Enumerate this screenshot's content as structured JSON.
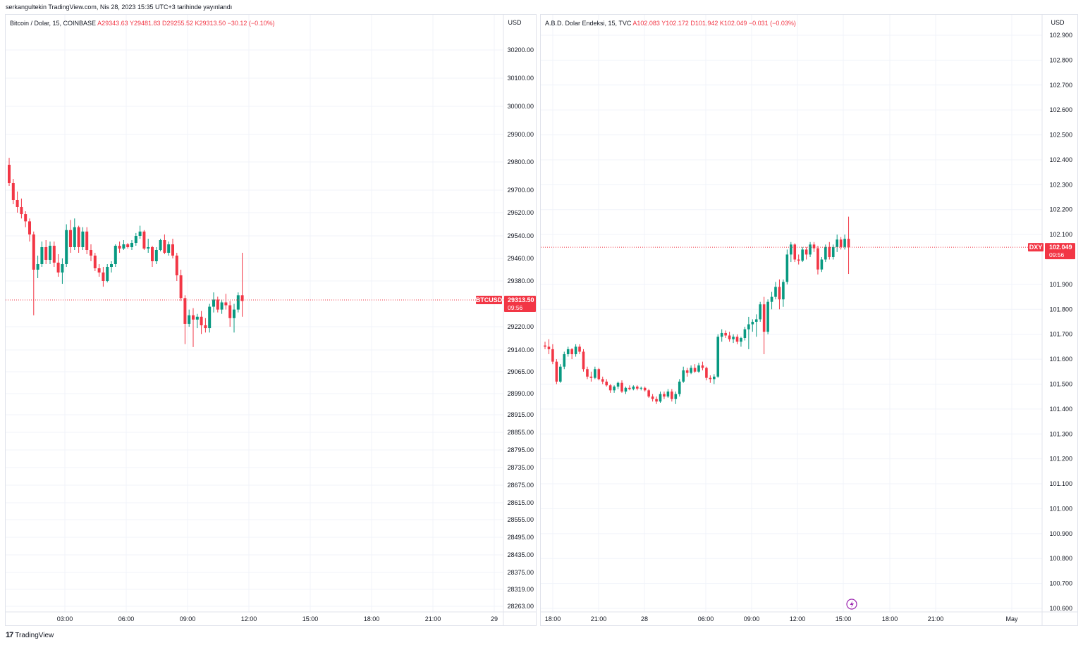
{
  "header": {
    "published": "serkangultekin TradingView.com, Nis 28, 2023 15:35 UTC+3 tarihinde yayınlandı"
  },
  "footer": {
    "brand": "TradingView",
    "logo_icon": "tradingview-logo-icon"
  },
  "colors": {
    "up": "#089981",
    "down": "#f23645",
    "grid": "#f0f3fa",
    "price_line": "#f23645"
  },
  "left": {
    "legend_symbol": "Bitcoin / Dolar, 15, COINBASE",
    "legend_ohlc": "A29343.63  Y29481.83  D29255.52  K29313.50  −30.12 (−0.10%)",
    "currency": "USD",
    "tag_symbol": "BTCUSD",
    "tag_price": "29313.50",
    "tag_time": "09:56",
    "y_labels": [
      "30200.00",
      "30100.00",
      "30000.00",
      "29900.00",
      "29800.00",
      "29700.00",
      "29620.00",
      "29540.00",
      "29460.00",
      "29380.00",
      "29220.00",
      "29140.00",
      "29065.00",
      "28990.00",
      "28915.00",
      "28855.00",
      "28795.00",
      "28735.00",
      "28675.00",
      "28615.00",
      "28555.00",
      "28495.00",
      "28435.00",
      "28375.00",
      "28319.00",
      "28263.00"
    ],
    "x_labels": [
      "03:00",
      "06:00",
      "09:00",
      "12:00",
      "15:00",
      "18:00",
      "21:00",
      "29"
    ]
  },
  "right": {
    "legend_symbol": "A.B.D. Dolar Endeksi, 15, TVC",
    "legend_ohlc": "A102.083  Y102.172  D101.942  K102.049  −0.031 (−0.03%)",
    "currency": "USD",
    "tag_symbol": "DXY",
    "tag_price": "102.049",
    "tag_time": "09:56",
    "event_icon": "lightning-icon",
    "y_labels": [
      "102.900",
      "102.800",
      "102.700",
      "102.600",
      "102.500",
      "102.400",
      "102.300",
      "102.200",
      "102.100",
      "101.900",
      "101.800",
      "101.700",
      "101.600",
      "101.500",
      "101.400",
      "101.300",
      "101.200",
      "101.100",
      "101.000",
      "100.900",
      "100.800",
      "100.700",
      "100.600"
    ],
    "x_labels": [
      "18:00",
      "21:00",
      "28",
      "06:00",
      "09:00",
      "12:00",
      "15:00",
      "18:00",
      "21:00",
      "May"
    ]
  },
  "chart_data": [
    {
      "type": "candlestick",
      "title": "Bitcoin / Dolar, 15, COINBASE",
      "currency": "USD",
      "last": 29313.5,
      "x_start": "00:45",
      "interval_minutes": 15,
      "series": [
        {
          "o": 29790,
          "h": 29815,
          "l": 29715,
          "c": 29725
        },
        {
          "o": 29725,
          "h": 29740,
          "l": 29650,
          "c": 29665
        },
        {
          "o": 29665,
          "h": 29695,
          "l": 29620,
          "c": 29640
        },
        {
          "o": 29640,
          "h": 29670,
          "l": 29600,
          "c": 29615
        },
        {
          "o": 29615,
          "h": 29625,
          "l": 29570,
          "c": 29590
        },
        {
          "o": 29590,
          "h": 29600,
          "l": 29520,
          "c": 29545
        },
        {
          "o": 29545,
          "h": 29555,
          "l": 29260,
          "c": 29420
        },
        {
          "o": 29420,
          "h": 29470,
          "l": 29390,
          "c": 29440
        },
        {
          "o": 29440,
          "h": 29520,
          "l": 29430,
          "c": 29500
        },
        {
          "o": 29500,
          "h": 29525,
          "l": 29440,
          "c": 29455
        },
        {
          "o": 29455,
          "h": 29520,
          "l": 29440,
          "c": 29505
        },
        {
          "o": 29505,
          "h": 29520,
          "l": 29430,
          "c": 29445
        },
        {
          "o": 29445,
          "h": 29475,
          "l": 29395,
          "c": 29410
        },
        {
          "o": 29410,
          "h": 29460,
          "l": 29370,
          "c": 29440
        },
        {
          "o": 29440,
          "h": 29580,
          "l": 29430,
          "c": 29560
        },
        {
          "o": 29560,
          "h": 29595,
          "l": 29480,
          "c": 29500
        },
        {
          "o": 29500,
          "h": 29600,
          "l": 29490,
          "c": 29570
        },
        {
          "o": 29570,
          "h": 29575,
          "l": 29480,
          "c": 29500
        },
        {
          "o": 29500,
          "h": 29570,
          "l": 29490,
          "c": 29555
        },
        {
          "o": 29555,
          "h": 29570,
          "l": 29475,
          "c": 29490
        },
        {
          "o": 29490,
          "h": 29510,
          "l": 29450,
          "c": 29470
        },
        {
          "o": 29470,
          "h": 29480,
          "l": 29415,
          "c": 29425
        },
        {
          "o": 29425,
          "h": 29440,
          "l": 29395,
          "c": 29410
        },
        {
          "o": 29410,
          "h": 29430,
          "l": 29360,
          "c": 29380
        },
        {
          "o": 29380,
          "h": 29440,
          "l": 29375,
          "c": 29430
        },
        {
          "o": 29430,
          "h": 29450,
          "l": 29410,
          "c": 29440
        },
        {
          "o": 29440,
          "h": 29510,
          "l": 29430,
          "c": 29505
        },
        {
          "o": 29505,
          "h": 29520,
          "l": 29480,
          "c": 29495
        },
        {
          "o": 29495,
          "h": 29525,
          "l": 29490,
          "c": 29510
        },
        {
          "o": 29510,
          "h": 29515,
          "l": 29495,
          "c": 29500
        },
        {
          "o": 29500,
          "h": 29525,
          "l": 29490,
          "c": 29515
        },
        {
          "o": 29515,
          "h": 29550,
          "l": 29505,
          "c": 29540
        },
        {
          "o": 29540,
          "h": 29575,
          "l": 29530,
          "c": 29555
        },
        {
          "o": 29555,
          "h": 29560,
          "l": 29490,
          "c": 29495
        },
        {
          "o": 29495,
          "h": 29530,
          "l": 29480,
          "c": 29500
        },
        {
          "o": 29500,
          "h": 29505,
          "l": 29430,
          "c": 29450
        },
        {
          "o": 29450,
          "h": 29500,
          "l": 29440,
          "c": 29490
        },
        {
          "o": 29490,
          "h": 29530,
          "l": 29485,
          "c": 29525
        },
        {
          "o": 29525,
          "h": 29545,
          "l": 29475,
          "c": 29480
        },
        {
          "o": 29480,
          "h": 29520,
          "l": 29470,
          "c": 29510
        },
        {
          "o": 29510,
          "h": 29530,
          "l": 29460,
          "c": 29470
        },
        {
          "o": 29470,
          "h": 29480,
          "l": 29380,
          "c": 29400
        },
        {
          "o": 29400,
          "h": 29420,
          "l": 29310,
          "c": 29320
        },
        {
          "o": 29320,
          "h": 29330,
          "l": 29160,
          "c": 29230
        },
        {
          "o": 29230,
          "h": 29280,
          "l": 29220,
          "c": 29260
        },
        {
          "o": 29260,
          "h": 29285,
          "l": 29150,
          "c": 29245
        },
        {
          "o": 29245,
          "h": 29265,
          "l": 29215,
          "c": 29255
        },
        {
          "o": 29255,
          "h": 29275,
          "l": 29195,
          "c": 29225
        },
        {
          "o": 29225,
          "h": 29250,
          "l": 29200,
          "c": 29215
        },
        {
          "o": 29215,
          "h": 29300,
          "l": 29200,
          "c": 29290
        },
        {
          "o": 29290,
          "h": 29340,
          "l": 29270,
          "c": 29315
        },
        {
          "o": 29315,
          "h": 29325,
          "l": 29270,
          "c": 29280
        },
        {
          "o": 29280,
          "h": 29315,
          "l": 29265,
          "c": 29305
        },
        {
          "o": 29305,
          "h": 29335,
          "l": 29280,
          "c": 29295
        },
        {
          "o": 29295,
          "h": 29310,
          "l": 29220,
          "c": 29250
        },
        {
          "o": 29250,
          "h": 29300,
          "l": 29200,
          "c": 29280
        },
        {
          "o": 29280,
          "h": 29340,
          "l": 29270,
          "c": 29330
        },
        {
          "o": 29330,
          "h": 29480,
          "l": 29255,
          "c": 29310
        }
      ]
    },
    {
      "type": "candlestick",
      "title": "A.B.D. Dolar Endeksi, 15, TVC",
      "currency": "USD",
      "last": 102.049,
      "x_start": "17:45",
      "interval_minutes": 15,
      "series": [
        {
          "o": 101.655,
          "h": 101.67,
          "l": 101.64,
          "c": 101.65
        },
        {
          "o": 101.65,
          "h": 101.68,
          "l": 101.62,
          "c": 101.64
        },
        {
          "o": 101.64,
          "h": 101.66,
          "l": 101.58,
          "c": 101.59
        },
        {
          "o": 101.59,
          "h": 101.6,
          "l": 101.5,
          "c": 101.51
        },
        {
          "o": 101.51,
          "h": 101.58,
          "l": 101.505,
          "c": 101.57
        },
        {
          "o": 101.57,
          "h": 101.63,
          "l": 101.56,
          "c": 101.62
        },
        {
          "o": 101.62,
          "h": 101.65,
          "l": 101.61,
          "c": 101.64
        },
        {
          "o": 101.64,
          "h": 101.645,
          "l": 101.6,
          "c": 101.62
        },
        {
          "o": 101.62,
          "h": 101.66,
          "l": 101.61,
          "c": 101.65
        },
        {
          "o": 101.65,
          "h": 101.66,
          "l": 101.62,
          "c": 101.63
        },
        {
          "o": 101.63,
          "h": 101.64,
          "l": 101.55,
          "c": 101.56
        },
        {
          "o": 101.56,
          "h": 101.57,
          "l": 101.52,
          "c": 101.53
        },
        {
          "o": 101.53,
          "h": 101.55,
          "l": 101.51,
          "c": 101.525
        },
        {
          "o": 101.525,
          "h": 101.57,
          "l": 101.52,
          "c": 101.56
        },
        {
          "o": 101.56,
          "h": 101.565,
          "l": 101.515,
          "c": 101.52
        },
        {
          "o": 101.52,
          "h": 101.53,
          "l": 101.5,
          "c": 101.51
        },
        {
          "o": 101.51,
          "h": 101.52,
          "l": 101.49,
          "c": 101.495
        },
        {
          "o": 101.495,
          "h": 101.5,
          "l": 101.465,
          "c": 101.475
        },
        {
          "o": 101.475,
          "h": 101.495,
          "l": 101.465,
          "c": 101.49
        },
        {
          "o": 101.49,
          "h": 101.51,
          "l": 101.48,
          "c": 101.505
        },
        {
          "o": 101.505,
          "h": 101.515,
          "l": 101.465,
          "c": 101.47
        },
        {
          "o": 101.47,
          "h": 101.49,
          "l": 101.46,
          "c": 101.485
        },
        {
          "o": 101.485,
          "h": 101.495,
          "l": 101.475,
          "c": 101.48
        },
        {
          "o": 101.48,
          "h": 101.495,
          "l": 101.475,
          "c": 101.49
        },
        {
          "o": 101.49,
          "h": 101.495,
          "l": 101.475,
          "c": 101.482
        },
        {
          "o": 101.482,
          "h": 101.49,
          "l": 101.475,
          "c": 101.485
        },
        {
          "o": 101.485,
          "h": 101.49,
          "l": 101.47,
          "c": 101.475
        },
        {
          "o": 101.475,
          "h": 101.48,
          "l": 101.445,
          "c": 101.45
        },
        {
          "o": 101.45,
          "h": 101.46,
          "l": 101.43,
          "c": 101.44
        },
        {
          "o": 101.44,
          "h": 101.45,
          "l": 101.42,
          "c": 101.43
        },
        {
          "o": 101.43,
          "h": 101.47,
          "l": 101.425,
          "c": 101.46
        },
        {
          "o": 101.46,
          "h": 101.47,
          "l": 101.44,
          "c": 101.45
        },
        {
          "o": 101.45,
          "h": 101.48,
          "l": 101.445,
          "c": 101.47
        },
        {
          "o": 101.47,
          "h": 101.48,
          "l": 101.43,
          "c": 101.44
        },
        {
          "o": 101.44,
          "h": 101.47,
          "l": 101.42,
          "c": 101.46
        },
        {
          "o": 101.46,
          "h": 101.52,
          "l": 101.45,
          "c": 101.51
        },
        {
          "o": 101.51,
          "h": 101.57,
          "l": 101.505,
          "c": 101.555
        },
        {
          "o": 101.555,
          "h": 101.565,
          "l": 101.53,
          "c": 101.545
        },
        {
          "o": 101.545,
          "h": 101.575,
          "l": 101.54,
          "c": 101.565
        },
        {
          "o": 101.565,
          "h": 101.58,
          "l": 101.545,
          "c": 101.55
        },
        {
          "o": 101.55,
          "h": 101.585,
          "l": 101.545,
          "c": 101.575
        },
        {
          "o": 101.575,
          "h": 101.59,
          "l": 101.555,
          "c": 101.565
        },
        {
          "o": 101.565,
          "h": 101.57,
          "l": 101.515,
          "c": 101.525
        },
        {
          "o": 101.525,
          "h": 101.535,
          "l": 101.505,
          "c": 101.52
        },
        {
          "o": 101.52,
          "h": 101.54,
          "l": 101.5,
          "c": 101.53
        },
        {
          "o": 101.53,
          "h": 101.7,
          "l": 101.525,
          "c": 101.69
        },
        {
          "o": 101.69,
          "h": 101.72,
          "l": 101.67,
          "c": 101.705
        },
        {
          "o": 101.705,
          "h": 101.715,
          "l": 101.685,
          "c": 101.695
        },
        {
          "o": 101.695,
          "h": 101.71,
          "l": 101.67,
          "c": 101.68
        },
        {
          "o": 101.68,
          "h": 101.7,
          "l": 101.665,
          "c": 101.69
        },
        {
          "o": 101.69,
          "h": 101.7,
          "l": 101.66,
          "c": 101.67
        },
        {
          "o": 101.67,
          "h": 101.69,
          "l": 101.65,
          "c": 101.685
        },
        {
          "o": 101.685,
          "h": 101.73,
          "l": 101.675,
          "c": 101.72
        },
        {
          "o": 101.72,
          "h": 101.77,
          "l": 101.64,
          "c": 101.74
        },
        {
          "o": 101.74,
          "h": 101.76,
          "l": 101.71,
          "c": 101.75
        },
        {
          "o": 101.75,
          "h": 101.78,
          "l": 101.69,
          "c": 101.76
        },
        {
          "o": 101.76,
          "h": 101.83,
          "l": 101.75,
          "c": 101.82
        },
        {
          "o": 101.82,
          "h": 101.85,
          "l": 101.62,
          "c": 101.71
        },
        {
          "o": 101.71,
          "h": 101.84,
          "l": 101.7,
          "c": 101.83
        },
        {
          "o": 101.83,
          "h": 101.87,
          "l": 101.8,
          "c": 101.85
        },
        {
          "o": 101.85,
          "h": 101.91,
          "l": 101.84,
          "c": 101.89
        },
        {
          "o": 101.89,
          "h": 101.92,
          "l": 101.8,
          "c": 101.84
        },
        {
          "o": 101.84,
          "h": 101.92,
          "l": 101.81,
          "c": 101.91
        },
        {
          "o": 101.91,
          "h": 102.04,
          "l": 101.9,
          "c": 102.02
        },
        {
          "o": 102.02,
          "h": 102.07,
          "l": 101.99,
          "c": 102.06
        },
        {
          "o": 102.06,
          "h": 102.065,
          "l": 101.99,
          "c": 102.0
        },
        {
          "o": 102.0,
          "h": 102.02,
          "l": 101.98,
          "c": 101.995
        },
        {
          "o": 101.995,
          "h": 102.05,
          "l": 101.99,
          "c": 102.04
        },
        {
          "o": 102.04,
          "h": 102.05,
          "l": 102.0,
          "c": 102.02
        },
        {
          "o": 102.02,
          "h": 102.07,
          "l": 102.01,
          "c": 102.06
        },
        {
          "o": 102.06,
          "h": 102.07,
          "l": 102.03,
          "c": 102.045
        },
        {
          "o": 102.045,
          "h": 102.055,
          "l": 101.94,
          "c": 101.96
        },
        {
          "o": 101.96,
          "h": 102.01,
          "l": 101.95,
          "c": 102.0
        },
        {
          "o": 102.0,
          "h": 102.06,
          "l": 101.99,
          "c": 102.05
        },
        {
          "o": 102.05,
          "h": 102.07,
          "l": 102.0,
          "c": 102.01
        },
        {
          "o": 102.01,
          "h": 102.06,
          "l": 102.0,
          "c": 102.05
        },
        {
          "o": 102.05,
          "h": 102.1,
          "l": 102.03,
          "c": 102.08
        },
        {
          "o": 102.08,
          "h": 102.09,
          "l": 102.04,
          "c": 102.05
        },
        {
          "o": 102.05,
          "h": 102.1,
          "l": 102.04,
          "c": 102.083
        },
        {
          "o": 102.083,
          "h": 102.172,
          "l": 101.942,
          "c": 102.049
        }
      ]
    }
  ]
}
